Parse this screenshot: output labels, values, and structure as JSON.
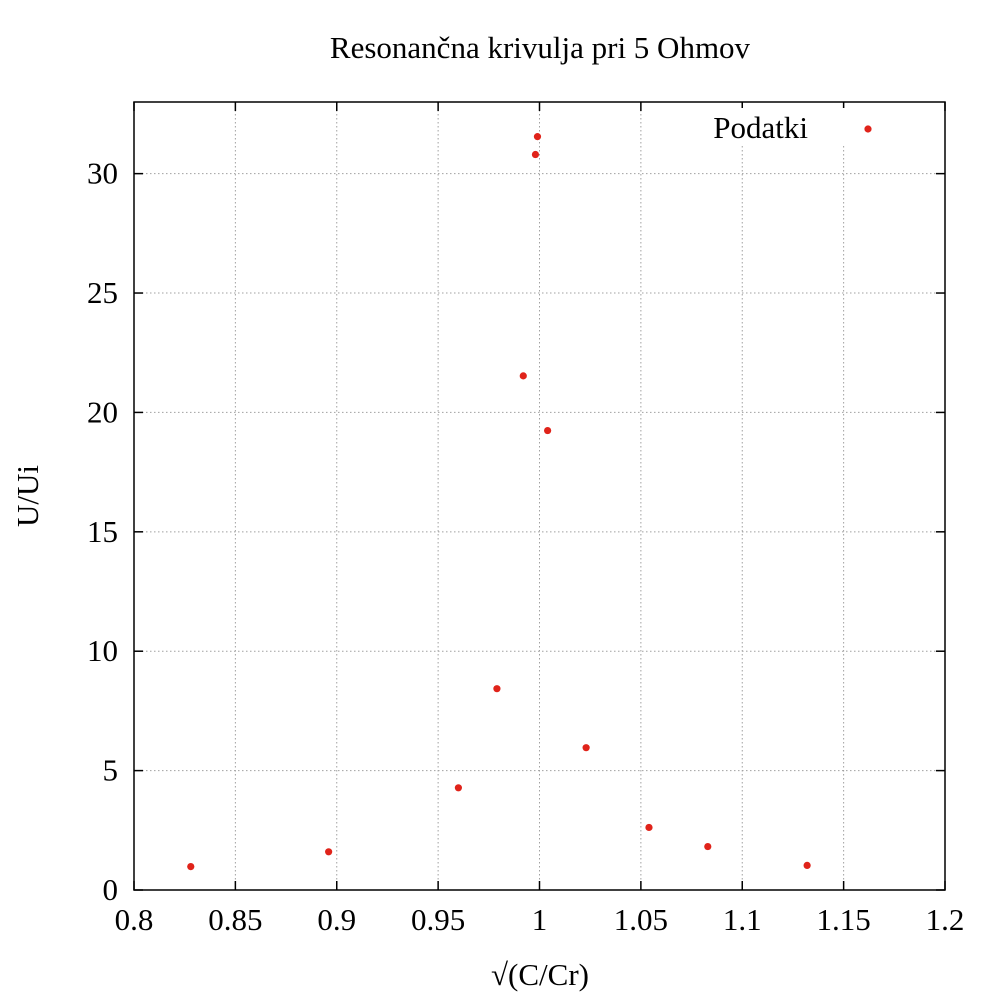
{
  "chart_data": {
    "type": "scatter",
    "title": "Resonančna krivulja pri 5 Ohmov",
    "xlabel": "√(C/Cr)",
    "ylabel": "U/Ui",
    "xlim": [
      0.8,
      1.2
    ],
    "ylim": [
      0,
      33
    ],
    "x_ticks": [
      "0.8",
      "0.85",
      "0.9",
      "0.95",
      "1",
      "1.05",
      "1.1",
      "1.15",
      "1.2"
    ],
    "y_ticks": [
      "0",
      "5",
      "10",
      "15",
      "20",
      "25",
      "30"
    ],
    "grid": true,
    "legend_position": "top-right",
    "series": [
      {
        "name": "Podatki",
        "color": "#e0231a",
        "marker": "dot",
        "x": [
          0.828,
          0.896,
          0.96,
          0.979,
          0.992,
          0.998,
          0.999,
          1.004,
          1.023,
          1.054,
          1.083,
          1.132
        ],
        "y": [
          0.98,
          1.6,
          4.28,
          8.43,
          21.53,
          30.8,
          31.55,
          19.24,
          5.96,
          2.62,
          1.82,
          1.03
        ]
      }
    ]
  }
}
